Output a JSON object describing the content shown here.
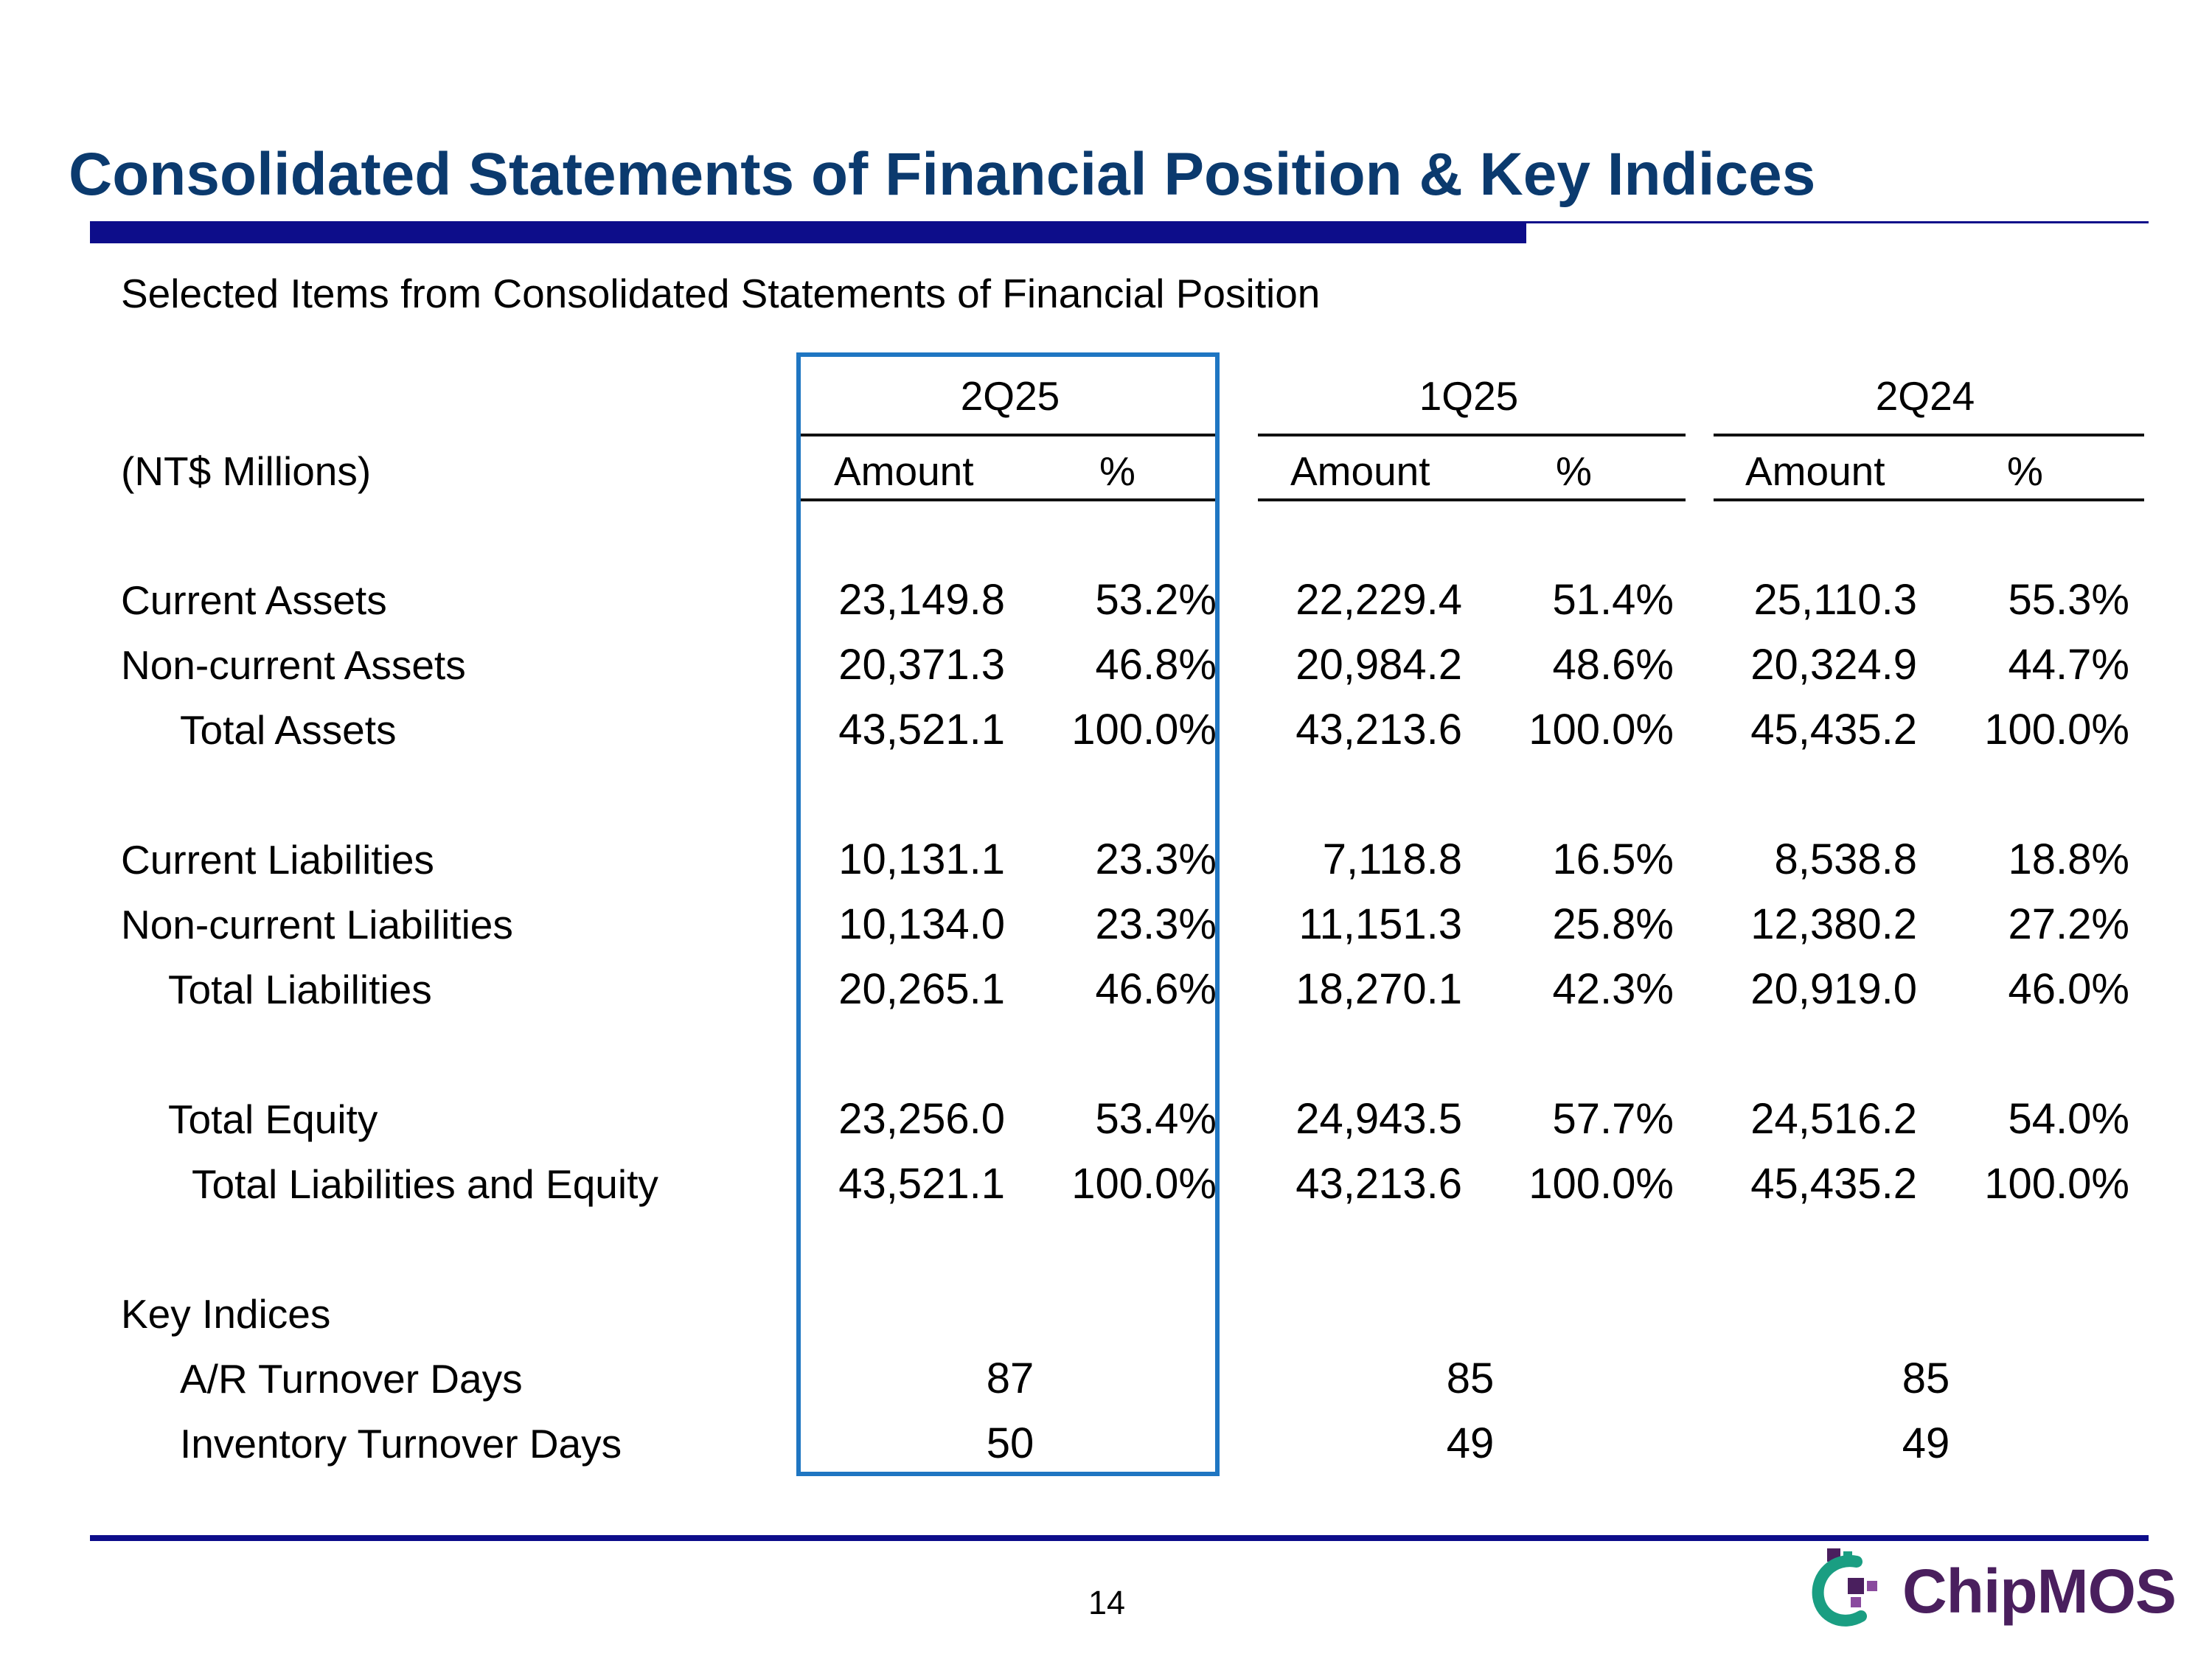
{
  "title": "Consolidated Statements of Financial Position & Key Indices",
  "subtitle": "Selected Items from Consolidated Statements of Financial Position",
  "unit_label": "(NT$ Millions)",
  "periods": [
    "2Q25",
    "1Q25",
    "2Q24"
  ],
  "col_amount": "Amount",
  "col_pct": "%",
  "rows": [
    {
      "label": "Current Assets",
      "values": [
        "23,149.8",
        "53.2%",
        "22,229.4",
        "51.4%",
        "25,110.3",
        "55.3%"
      ]
    },
    {
      "label": "Non-current Assets",
      "values": [
        "20,371.3",
        "46.8%",
        "20,984.2",
        "48.6%",
        "20,324.9",
        "44.7%"
      ]
    },
    {
      "label": "Total Assets",
      "values": [
        "43,521.1",
        "100.0%",
        "43,213.6",
        "100.0%",
        "45,435.2",
        "100.0%"
      ]
    },
    {
      "label": "Current Liabilities",
      "values": [
        "10,131.1",
        "23.3%",
        "7,118.8",
        "16.5%",
        "8,538.8",
        "18.8%"
      ]
    },
    {
      "label": "Non-current Liabilities",
      "values": [
        "10,134.0",
        "23.3%",
        "11,151.3",
        "25.8%",
        "12,380.2",
        "27.2%"
      ]
    },
    {
      "label": "Total Liabilities",
      "values": [
        "20,265.1",
        "46.6%",
        "18,270.1",
        "42.3%",
        "20,919.0",
        "46.0%"
      ]
    },
    {
      "label": "Total Equity",
      "values": [
        "23,256.0",
        "53.4%",
        "24,943.5",
        "57.7%",
        "24,516.2",
        "54.0%"
      ]
    },
    {
      "label": "Total Liabilities and Equity",
      "values": [
        "43,521.1",
        "100.0%",
        "43,213.6",
        "100.0%",
        "45,435.2",
        "100.0%"
      ]
    }
  ],
  "key_indices": {
    "heading": "Key Indices",
    "rows": [
      {
        "label": "A/R Turnover Days",
        "values": [
          "87",
          "85",
          "85"
        ]
      },
      {
        "label": "Inventory Turnover Days",
        "values": [
          "50",
          "49",
          "49"
        ]
      }
    ]
  },
  "page_number": "14",
  "logo_text": "ChipMOS",
  "colors": {
    "title": "#0b3a6e",
    "rule": "#0d0d8a",
    "highlight": "#1f76c2",
    "logo": "#4a1f5e",
    "logo_accent": "#1a9e82"
  }
}
